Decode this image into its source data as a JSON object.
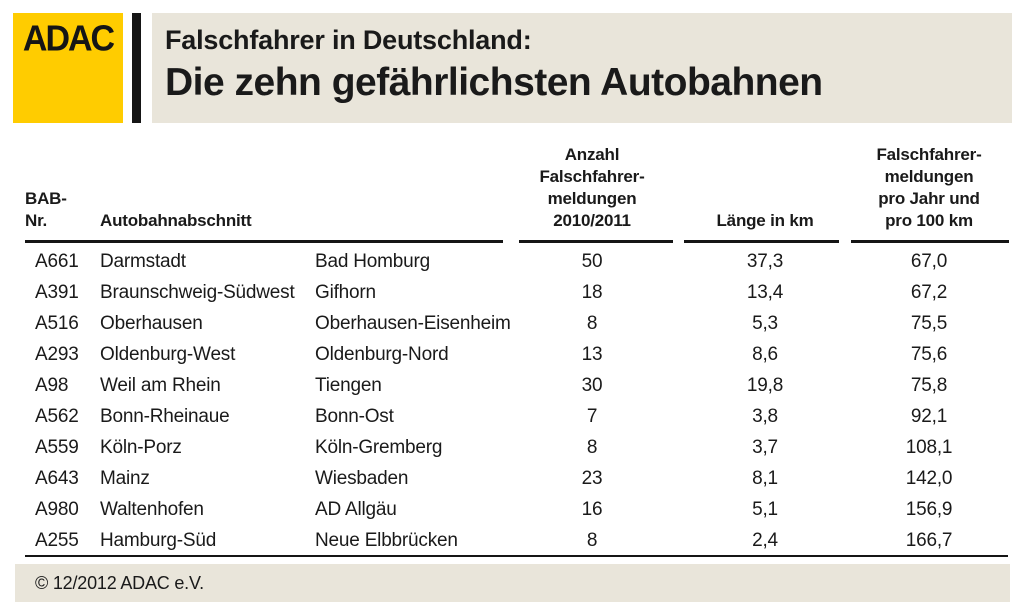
{
  "header": {
    "logo_text": "ADAC",
    "title_line1": "Falschfahrer in Deutschland:",
    "title_line2": "Die zehn gefährlichsten Autobahnen"
  },
  "colors": {
    "adac_yellow": "#FFCC00",
    "panel_beige": "#E9E5DA",
    "text_black": "#1A1A1A"
  },
  "table": {
    "headers": {
      "bab": "BAB-\nNr.",
      "section": "Autobahnabschnitt",
      "count": "Anzahl\nFalschfahrer-\nmeldungen\n2010/2011",
      "length": "Länge in km",
      "rate": "Falschfahrer-\nmeldungen\npro Jahr und\npro 100 km"
    },
    "rows": [
      {
        "bab": "A661",
        "from": "Darmstadt",
        "to": "Bad Homburg",
        "count": "50",
        "length": "37,3",
        "rate": "67,0"
      },
      {
        "bab": "A391",
        "from": "Braunschweig-Südwest",
        "to": "Gifhorn",
        "count": "18",
        "length": "13,4",
        "rate": "67,2"
      },
      {
        "bab": "A516",
        "from": "Oberhausen",
        "to": "Oberhausen-Eisenheim",
        "count": "8",
        "length": "5,3",
        "rate": "75,5"
      },
      {
        "bab": "A293",
        "from": "Oldenburg-West",
        "to": "Oldenburg-Nord",
        "count": "13",
        "length": "8,6",
        "rate": "75,6"
      },
      {
        "bab": "A98",
        "from": "Weil am Rhein",
        "to": "Tiengen",
        "count": "30",
        "length": "19,8",
        "rate": "75,8"
      },
      {
        "bab": "A562",
        "from": "Bonn-Rheinaue",
        "to": "Bonn-Ost",
        "count": "7",
        "length": "3,8",
        "rate": "92,1"
      },
      {
        "bab": "A559",
        "from": "Köln-Porz",
        "to": "Köln-Gremberg",
        "count": "8",
        "length": "3,7",
        "rate": "108,1"
      },
      {
        "bab": "A643",
        "from": "Mainz",
        "to": "Wiesbaden",
        "count": "23",
        "length": "8,1",
        "rate": "142,0"
      },
      {
        "bab": "A980",
        "from": "Waltenhofen",
        "to": "AD Allgäu",
        "count": "16",
        "length": "5,1",
        "rate": "156,9"
      },
      {
        "bab": "A255",
        "from": "Hamburg-Süd",
        "to": "Neue Elbbrücken",
        "count": "8",
        "length": "2,4",
        "rate": "166,7"
      }
    ]
  },
  "footer": {
    "copyright": "© 12/2012 ADAC e.V."
  },
  "chart_data": {
    "type": "table",
    "title": "Falschfahrer in Deutschland: Die zehn gefährlichsten Autobahnen",
    "columns": [
      "BAB-Nr.",
      "Autobahnabschnitt (von)",
      "Autobahnabschnitt (bis)",
      "Anzahl Falschfahrermeldungen 2010/2011",
      "Länge in km",
      "Falschfahrermeldungen pro Jahr und pro 100 km"
    ],
    "rows": [
      [
        "A661",
        "Darmstadt",
        "Bad Homburg",
        50,
        37.3,
        67.0
      ],
      [
        "A391",
        "Braunschweig-Südwest",
        "Gifhorn",
        18,
        13.4,
        67.2
      ],
      [
        "A516",
        "Oberhausen",
        "Oberhausen-Eisenheim",
        8,
        5.3,
        75.5
      ],
      [
        "A293",
        "Oldenburg-West",
        "Oldenburg-Nord",
        13,
        8.6,
        75.6
      ],
      [
        "A98",
        "Weil am Rhein",
        "Tiengen",
        30,
        19.8,
        75.8
      ],
      [
        "A562",
        "Bonn-Rheinaue",
        "Bonn-Ost",
        7,
        3.8,
        92.1
      ],
      [
        "A559",
        "Köln-Porz",
        "Köln-Gremberg",
        8,
        3.7,
        108.1
      ],
      [
        "A643",
        "Mainz",
        "Wiesbaden",
        23,
        8.1,
        142.0
      ],
      [
        "A980",
        "Waltenhofen",
        "AD Allgäu",
        16,
        5.1,
        156.9
      ],
      [
        "A255",
        "Hamburg-Süd",
        "Neue Elbbrücken",
        8,
        2.4,
        166.7
      ]
    ]
  }
}
